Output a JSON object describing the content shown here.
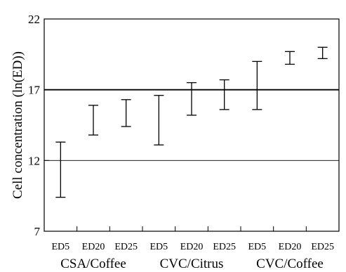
{
  "chart_data": {
    "type": "errorbar",
    "title": "",
    "xlabel": "",
    "ylabel": "Cell concentration (ln(ED))",
    "ylim": [
      7,
      22
    ],
    "yticks": [
      "7",
      "12",
      "17",
      "22"
    ],
    "categories": [
      "ED5",
      "ED20",
      "ED25",
      "ED5",
      "ED20",
      "ED25",
      "ED5",
      "ED20",
      "ED25"
    ],
    "groups": [
      {
        "label": "CSA/Coffee",
        "categories": [
          "ED5",
          "ED20",
          "ED25"
        ]
      },
      {
        "label": "CVC/Citrus",
        "categories": [
          "ED5",
          "ED20",
          "ED25"
        ]
      },
      {
        "label": "CVC/Coffee",
        "categories": [
          "ED5",
          "ED20",
          "ED25"
        ]
      }
    ],
    "intervals": [
      {
        "low": 9.4,
        "high": 13.3
      },
      {
        "low": 13.8,
        "high": 15.9
      },
      {
        "low": 14.4,
        "high": 16.3
      },
      {
        "low": 13.1,
        "high": 16.6
      },
      {
        "low": 15.2,
        "high": 17.5
      },
      {
        "low": 15.6,
        "high": 17.7
      },
      {
        "low": 15.6,
        "high": 19.0
      },
      {
        "low": 18.8,
        "high": 19.7
      },
      {
        "low": 19.2,
        "high": 20.0
      }
    ],
    "reference_lines": [
      {
        "y": 17,
        "style": "thick"
      },
      {
        "y": 12,
        "style": "thin"
      }
    ],
    "grid": false,
    "legend": "none"
  }
}
